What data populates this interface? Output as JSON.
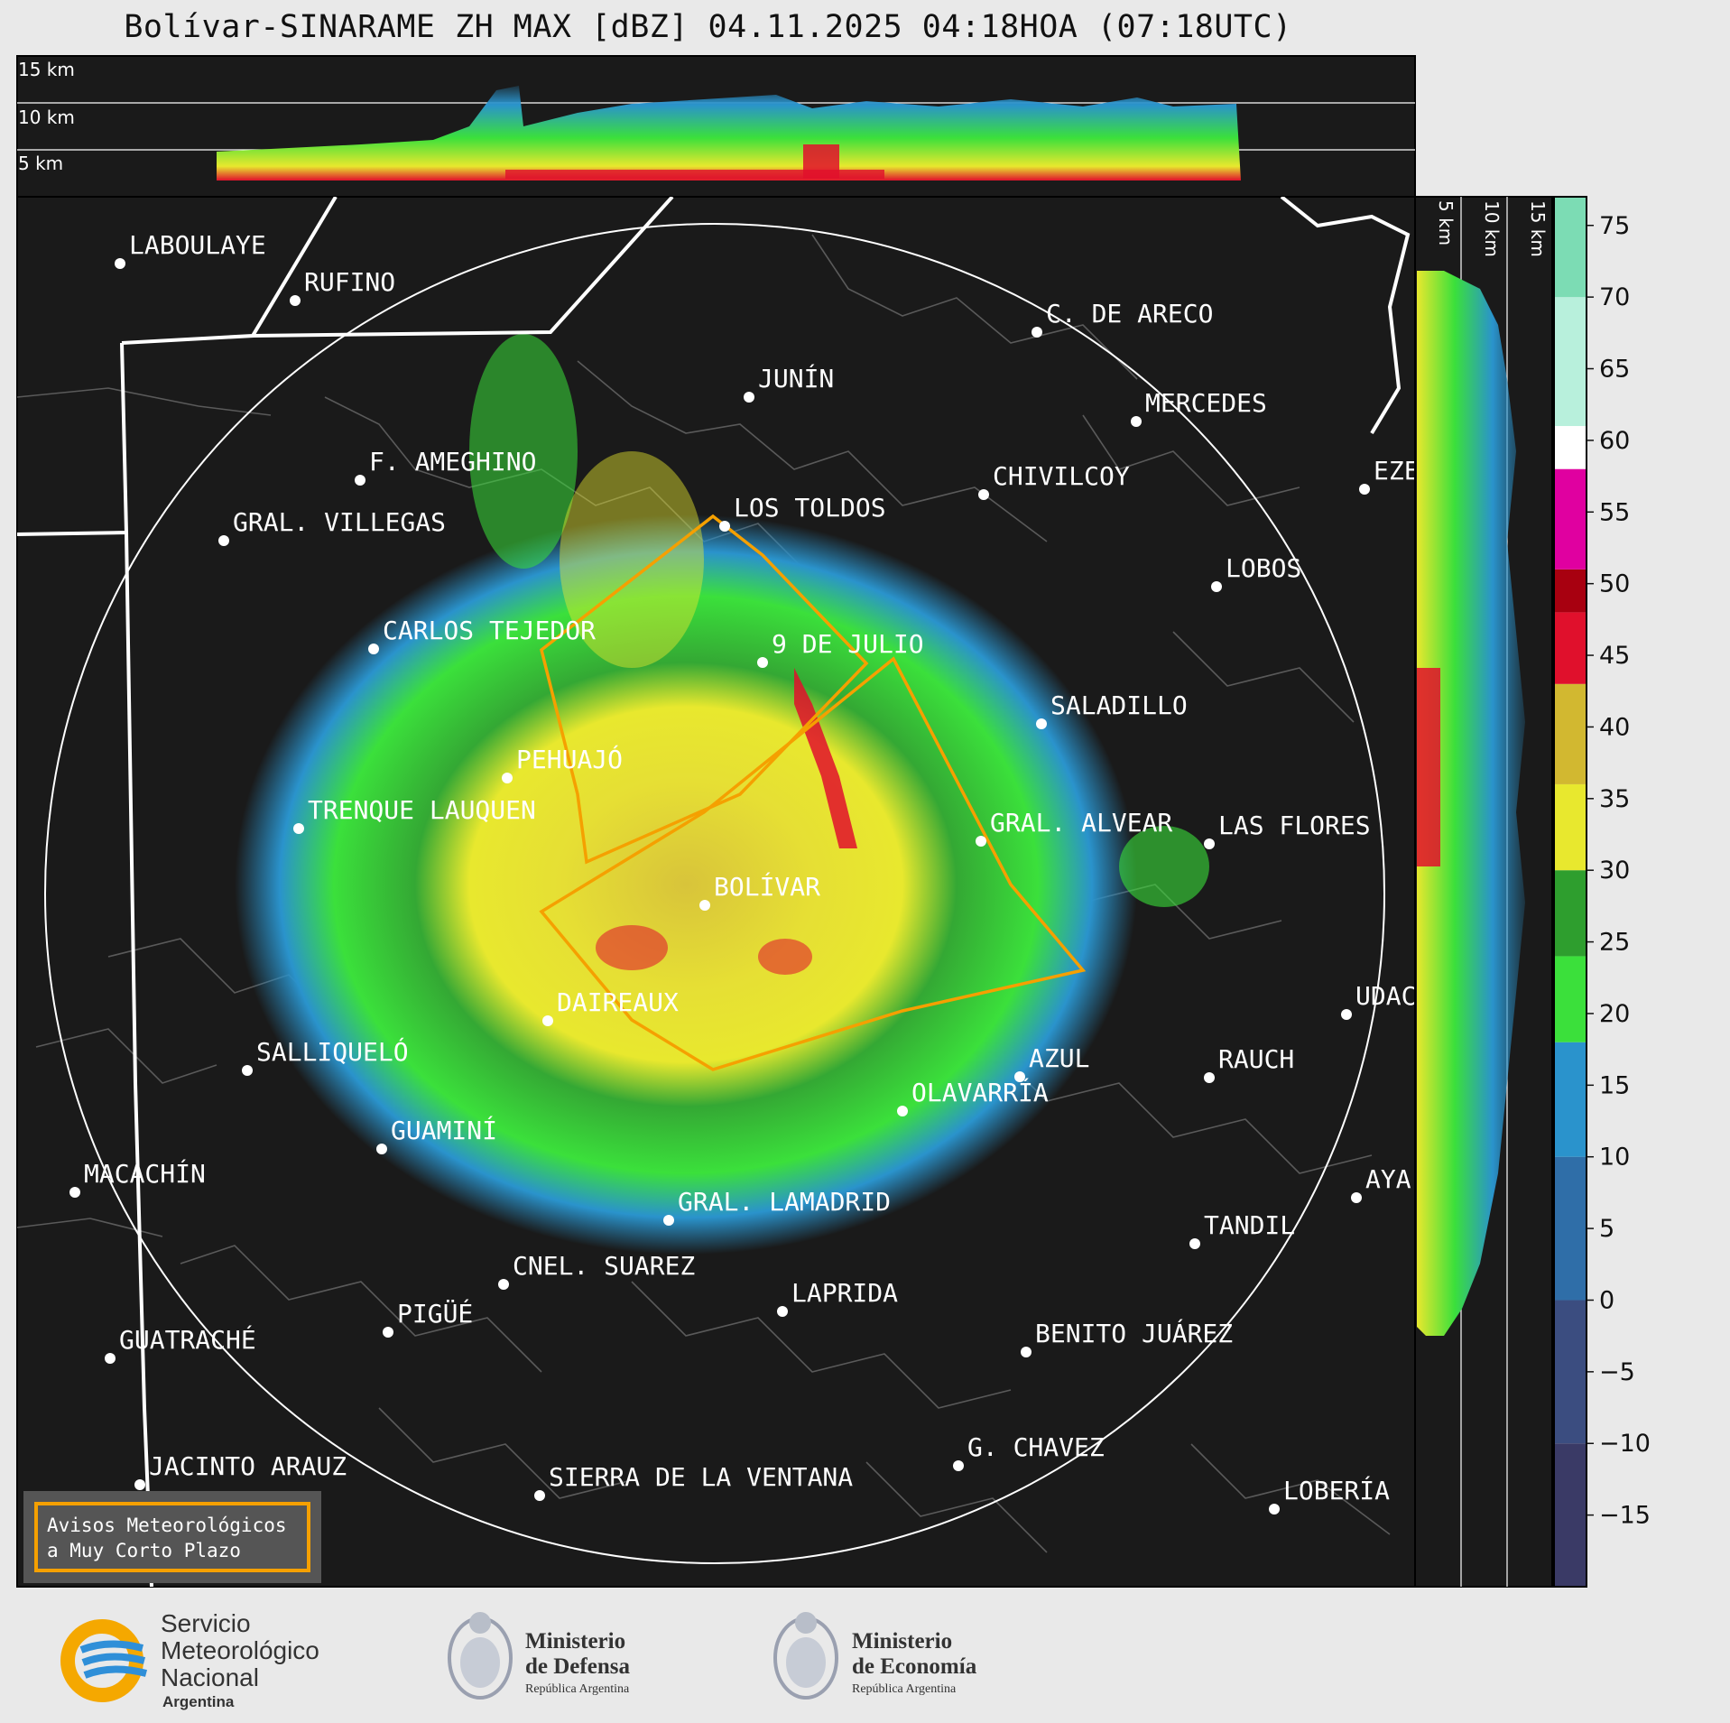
{
  "title": "Bolívar-SINARAME ZH MAX [dBZ] 04.11.2025 04:18HOA (07:18UTC)",
  "height_labels_top": [
    "15 km",
    "10 km",
    "5 km"
  ],
  "height_labels_side": [
    "5 km",
    "10 km",
    "15 km"
  ],
  "cities": [
    {
      "name": "LABOULAYE"
    },
    {
      "name": "RUFINO"
    },
    {
      "name": "C. DE ARECO"
    },
    {
      "name": "JUNÍN"
    },
    {
      "name": "MERCEDES"
    },
    {
      "name": "F. AMEGHINO"
    },
    {
      "name": "CHIVILCOY"
    },
    {
      "name": "EZE"
    },
    {
      "name": "LOS TOLDOS"
    },
    {
      "name": "GRAL. VILLEGAS"
    },
    {
      "name": "LOBOS"
    },
    {
      "name": "CARLOS TEJEDOR"
    },
    {
      "name": "9 DE JULIO"
    },
    {
      "name": "SALADILLO"
    },
    {
      "name": "PEHUAJÓ"
    },
    {
      "name": "TRENQUE LAUQUEN"
    },
    {
      "name": "GRAL. ALVEAR"
    },
    {
      "name": "LAS FLORES"
    },
    {
      "name": "BOLÍVAR"
    },
    {
      "name": "DAIREAUX"
    },
    {
      "name": "UDAC"
    },
    {
      "name": "SALLIQUELÓ"
    },
    {
      "name": "AZUL"
    },
    {
      "name": "RAUCH"
    },
    {
      "name": "OLAVARRÍA"
    },
    {
      "name": "GUAMINÍ"
    },
    {
      "name": "MACACHÍN"
    },
    {
      "name": "AYA"
    },
    {
      "name": "GRAL. LAMADRID"
    },
    {
      "name": "TANDIL"
    },
    {
      "name": "CNEL. SUAREZ"
    },
    {
      "name": "LAPRIDA"
    },
    {
      "name": "PIGÜÉ"
    },
    {
      "name": "GUATRACHÉ"
    },
    {
      "name": "BENITO JUÁREZ"
    },
    {
      "name": "G. CHAVEZ"
    },
    {
      "name": "JACINTO ARAUZ"
    },
    {
      "name": "SIERRA DE LA VENTANA"
    },
    {
      "name": "LOBERÍA"
    }
  ],
  "colorbar": {
    "unit": "dBZ",
    "ticks": [
      "75",
      "70",
      "65",
      "60",
      "55",
      "50",
      "45",
      "40",
      "35",
      "30",
      "25",
      "20",
      "15",
      "10",
      "5",
      "0",
      "−5",
      "−10",
      "−15"
    ],
    "range": [
      -20,
      77
    ],
    "stops": [
      {
        "from": -20,
        "color": "#3a3a66"
      },
      {
        "from": -10,
        "color": "#3b4d80"
      },
      {
        "from": 0,
        "color": "#2f6ea8"
      },
      {
        "from": 10,
        "color": "#2a93cc"
      },
      {
        "from": 18,
        "color": "#3be03b"
      },
      {
        "from": 24,
        "color": "#2e9e2e"
      },
      {
        "from": 30,
        "color": "#e8e82e"
      },
      {
        "from": 36,
        "color": "#d2b830"
      },
      {
        "from": 43,
        "color": "#e0102c"
      },
      {
        "from": 48,
        "color": "#a80010"
      },
      {
        "from": 51,
        "color": "#e000a0"
      },
      {
        "from": 58,
        "color": "#ffffff"
      },
      {
        "from": 61,
        "color": "#b8f0dc"
      },
      {
        "from": 70,
        "color": "#7cdcb4"
      }
    ]
  },
  "legend": {
    "line1": "Avisos Meteorológicos",
    "line2": "a Muy Corto Plazo",
    "color": "#f5a000"
  },
  "logos": {
    "smn": {
      "line1": "Servicio",
      "line2": "Meteorológico",
      "line3": "Nacional",
      "line4": "Argentina"
    },
    "defensa": {
      "line1": "Ministerio",
      "line2": "de Defensa",
      "line3": "República Argentina"
    },
    "economia": {
      "line1": "Ministerio",
      "line2": "de Economía",
      "line3": "República Argentina"
    }
  }
}
